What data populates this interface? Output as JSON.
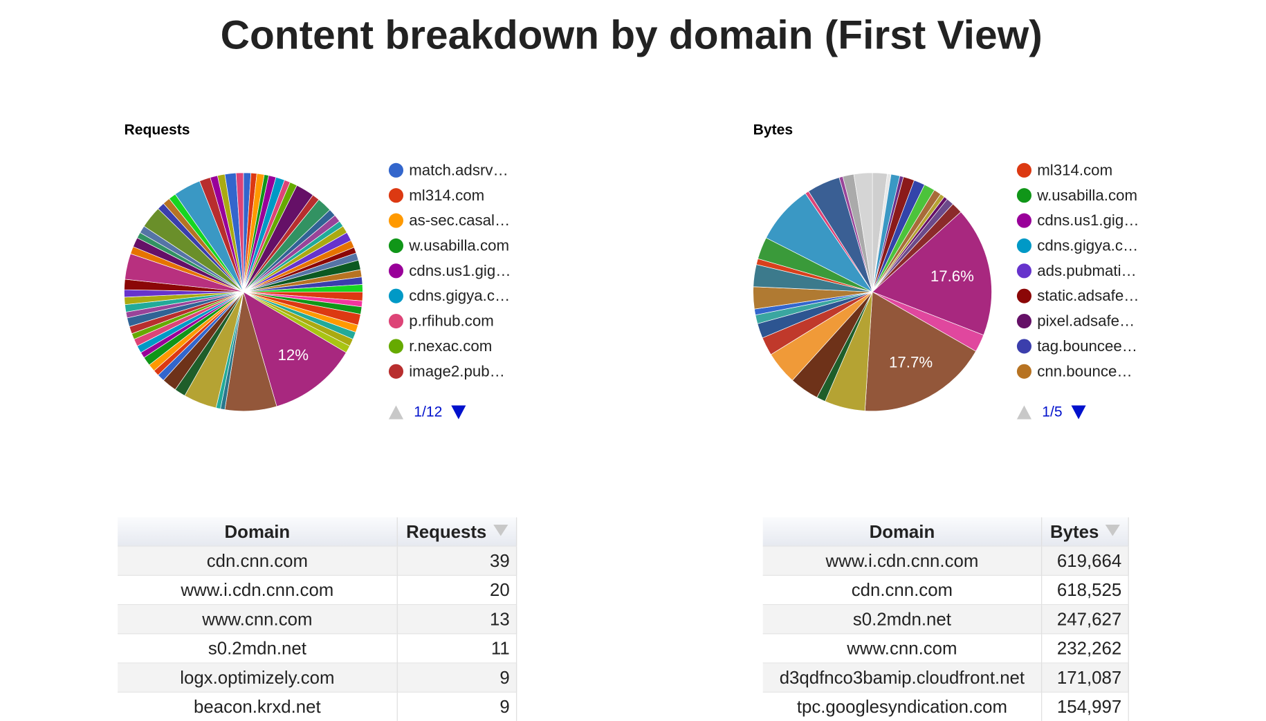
{
  "title": "Content breakdown by domain (First View)",
  "chart_data": [
    {
      "type": "pie",
      "title": "Requests",
      "values": [
        1,
        0.8,
        1,
        0.6,
        1,
        1.2,
        0.8,
        1,
        2.5,
        1,
        2,
        1,
        1,
        0.8,
        1,
        1.2,
        1,
        0.8,
        1,
        1.3,
        1,
        1,
        1,
        1.2,
        0.8,
        1,
        1.5,
        1,
        1,
        1,
        1,
        12,
        7,
        0.6,
        0.6,
        4.5,
        1.5,
        2,
        1,
        0.8,
        1,
        1.2,
        0.8,
        1,
        1,
        0.8,
        1,
        1.2,
        0.8,
        1,
        1,
        1,
        1.4,
        3.5,
        1,
        1.3,
        0.8,
        1,
        3,
        1,
        1,
        1,
        3.7,
        1.5,
        1,
        1,
        1.5,
        1
      ],
      "value_labels": [
        null,
        null,
        null,
        null,
        null,
        null,
        null,
        null,
        null,
        null,
        null,
        null,
        null,
        null,
        null,
        null,
        null,
        null,
        null,
        null,
        null,
        null,
        null,
        null,
        null,
        null,
        null,
        null,
        null,
        null,
        null,
        "12%",
        null,
        null,
        null,
        null,
        null,
        null,
        null,
        null,
        null,
        null,
        null,
        null,
        null,
        null,
        null,
        null,
        null,
        null,
        null,
        null,
        null,
        null,
        null,
        null,
        null,
        null,
        null,
        null,
        null,
        null,
        null,
        null,
        null,
        null,
        null,
        null
      ],
      "colors": [
        "#3366cc",
        "#dc3912",
        "#ff9900",
        "#109618",
        "#990099",
        "#0099c6",
        "#dd4477",
        "#66aa00",
        "#651067",
        "#b82e2e",
        "#329262",
        "#316395",
        "#994499",
        "#22aa99",
        "#aaaa11",
        "#6633cc",
        "#e67300",
        "#8b0707",
        "#5574a6",
        "#0c5922",
        "#b77322",
        "#3b3eac",
        "#16d620",
        "#dc3912",
        "#f4359e",
        "#109618",
        "#dc3912",
        "#ff9900",
        "#22aa99",
        "#aaaa11",
        "#a9c413",
        "#a8287f",
        "#93573a",
        "#2a778d",
        "#22aa99",
        "#b5a333",
        "#1e5e2a",
        "#6e3219",
        "#3366cc",
        "#dc3912",
        "#ff9900",
        "#109618",
        "#990099",
        "#0099c6",
        "#dd4477",
        "#66aa00",
        "#b82e2e",
        "#316395",
        "#994499",
        "#22aa99",
        "#aaaa11",
        "#6633cc",
        "#8b0707",
        "#b8307f",
        "#e67300",
        "#651067",
        "#329262",
        "#5574a6",
        "#6a8f2a",
        "#3b3eac",
        "#b77322",
        "#16d620",
        "#3a98c4",
        "#b82e2e",
        "#990099",
        "#aaaa11",
        "#3366cc",
        "#dd4477"
      ],
      "legend": [
        {
          "name": "match.adsrv…",
          "color": "#3366cc"
        },
        {
          "name": "ml314.com",
          "color": "#dc3912"
        },
        {
          "name": "as-sec.casal…",
          "color": "#ff9900"
        },
        {
          "name": "w.usabilla.com",
          "color": "#109618"
        },
        {
          "name": "cdns.us1.gig…",
          "color": "#990099"
        },
        {
          "name": "cdns.gigya.c…",
          "color": "#0099c6"
        },
        {
          "name": "p.rfihub.com",
          "color": "#dd4477"
        },
        {
          "name": "r.nexac.com",
          "color": "#66aa00"
        },
        {
          "name": "image2.pub…",
          "color": "#b82e2e"
        }
      ],
      "legend_page": "1/12"
    },
    {
      "type": "pie",
      "title": "Bytes",
      "values": [
        2,
        0.5,
        1.2,
        0.5,
        1.5,
        1.5,
        1.5,
        1,
        0.6,
        0.5,
        1,
        1.5,
        17.6,
        2.4,
        17.7,
        5.5,
        1.2,
        4,
        4.5,
        2.5,
        2,
        1.2,
        0.8,
        3,
        3,
        0.8,
        3,
        8,
        0.5,
        4.5,
        0.5,
        1.5,
        2.5
      ],
      "value_labels": [
        null,
        null,
        null,
        null,
        null,
        null,
        null,
        null,
        null,
        null,
        null,
        null,
        "17.6%",
        null,
        "17.7%",
        null,
        null,
        null,
        null,
        null,
        null,
        null,
        null,
        null,
        null,
        null,
        null,
        null,
        null,
        null,
        null,
        null,
        null
      ],
      "colors": [
        "#cfcfcf",
        "#e8e8e8",
        "#3a98c4",
        "#6b2f8a",
        "#8b1a1a",
        "#3344aa",
        "#4cc33b",
        "#a86b3a",
        "#b5a333",
        "#651067",
        "#6b4a8a",
        "#8b2a2a",
        "#a8287f",
        "#e0479e",
        "#93573a",
        "#b5a333",
        "#1e5e2a",
        "#6e3219",
        "#f09a38",
        "#c0392b",
        "#2d5591",
        "#3aa6a0",
        "#3366cc",
        "#b07a32",
        "#3c7a8c",
        "#d9401c",
        "#3a9a3a",
        "#3a98c4",
        "#dd4477",
        "#3a5f94",
        "#994499",
        "#aaaaaa",
        "#d5d5d5"
      ],
      "legend": [
        {
          "name": "ml314.com",
          "color": "#dc3912"
        },
        {
          "name": "w.usabilla.com",
          "color": "#109618"
        },
        {
          "name": "cdns.us1.gig…",
          "color": "#990099"
        },
        {
          "name": "cdns.gigya.c…",
          "color": "#0099c6"
        },
        {
          "name": "ads.pubmati…",
          "color": "#6633cc"
        },
        {
          "name": "static.adsafe…",
          "color": "#8b0707"
        },
        {
          "name": "pixel.adsafe…",
          "color": "#651067"
        },
        {
          "name": "tag.bouncee…",
          "color": "#3b3eac"
        },
        {
          "name": "cnn.bounce…",
          "color": "#b77322"
        }
      ],
      "legend_page": "1/5"
    }
  ],
  "tables": [
    {
      "columns": [
        "Domain",
        "Requests"
      ],
      "rows": [
        [
          "cdn.cnn.com",
          39
        ],
        [
          "www.i.cdn.cnn.com",
          20
        ],
        [
          "www.cnn.com",
          13
        ],
        [
          "s0.2mdn.net",
          11
        ],
        [
          "logx.optimizely.com",
          9
        ],
        [
          "beacon.krxd.net",
          9
        ]
      ]
    },
    {
      "columns": [
        "Domain",
        "Bytes"
      ],
      "rows": [
        [
          "www.i.cdn.cnn.com",
          "619,664"
        ],
        [
          "cdn.cnn.com",
          "618,525"
        ],
        [
          "s0.2mdn.net",
          "247,627"
        ],
        [
          "www.cnn.com",
          "232,262"
        ],
        [
          "d3qdfnco3bamip.cloudfront.net",
          "171,087"
        ],
        [
          "tpc.googlesyndication.com",
          "154,997"
        ]
      ]
    }
  ]
}
